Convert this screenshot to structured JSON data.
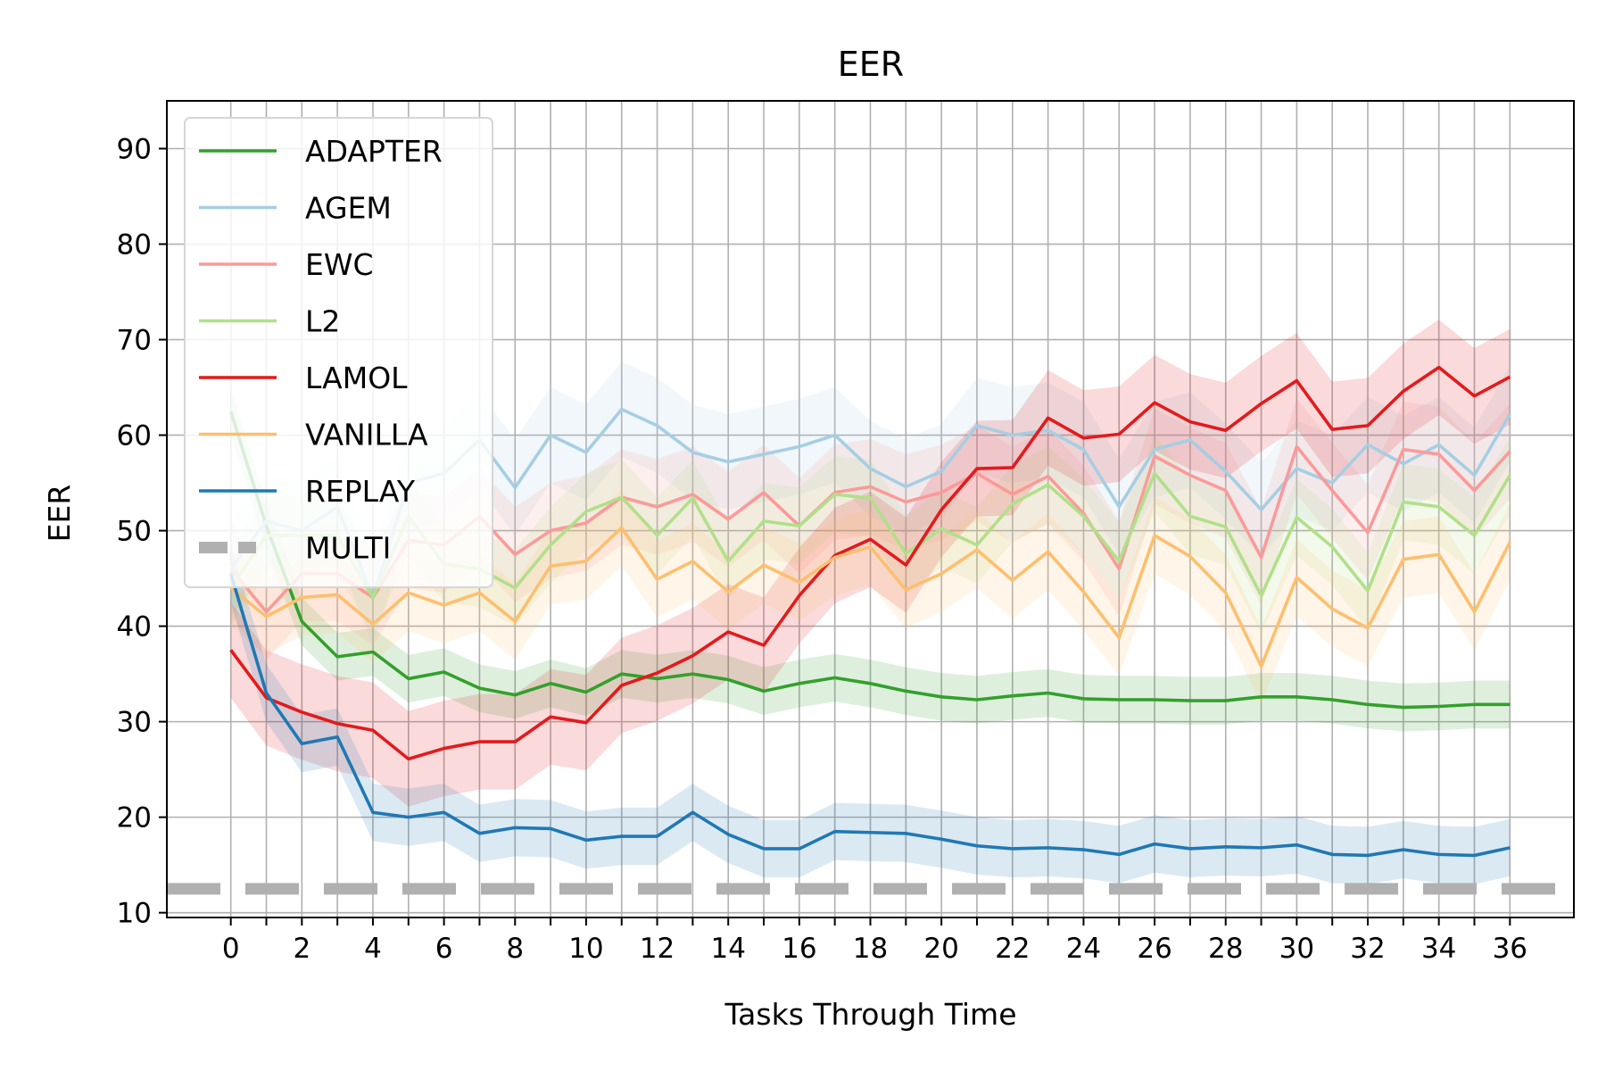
{
  "chart_data": {
    "type": "line",
    "title": "EER",
    "xlabel": "Tasks Through Time",
    "ylabel": "EER",
    "xlim": [
      -1.8,
      37.8
    ],
    "ylim": [
      9.5,
      95
    ],
    "xticks_labeled": [
      0,
      2,
      4,
      6,
      8,
      10,
      12,
      14,
      16,
      18,
      20,
      22,
      24,
      26,
      28,
      30,
      32,
      34,
      36
    ],
    "yticks": [
      10,
      20,
      30,
      40,
      50,
      60,
      70,
      80,
      90
    ],
    "grid": true,
    "legend_position": "upper-left",
    "x": [
      0,
      1,
      2,
      3,
      4,
      5,
      6,
      7,
      8,
      9,
      10,
      11,
      12,
      13,
      14,
      15,
      16,
      17,
      18,
      19,
      20,
      21,
      22,
      23,
      24,
      25,
      26,
      27,
      28,
      29,
      30,
      31,
      32,
      33,
      34,
      35,
      36
    ],
    "series": [
      {
        "name": "ADAPTER",
        "color": "#33a02c",
        "band": 2.5,
        "values": [
          62.5,
          50.5,
          40.5,
          36.8,
          37.3,
          34.5,
          35.2,
          33.5,
          32.8,
          34.0,
          33.1,
          35.0,
          34.5,
          35.0,
          34.4,
          33.2,
          34.0,
          34.6,
          34.0,
          33.2,
          32.6,
          32.3,
          32.7,
          33.0,
          32.4,
          32.3,
          32.3,
          32.2,
          32.2,
          32.6,
          32.6,
          32.3,
          31.8,
          31.5,
          31.6,
          31.8,
          31.8
        ]
      },
      {
        "name": "AGEM",
        "color": "#a6cee3",
        "band": 5,
        "values": [
          46.0,
          51.0,
          50.0,
          52.5,
          43.0,
          55.0,
          56.0,
          59.5,
          54.5,
          60.0,
          58.2,
          62.7,
          61.0,
          58.2,
          57.2,
          58.0,
          58.8,
          60.0,
          56.5,
          54.6,
          56.2,
          61.0,
          60.0,
          60.5,
          58.5,
          52.5,
          58.5,
          59.5,
          56.2,
          52.2,
          56.5,
          55.0,
          59.0,
          57.0,
          59.0,
          55.8,
          62.2
        ]
      },
      {
        "name": "EWC",
        "color": "#fb9a99",
        "band": 5,
        "values": [
          46.0,
          41.5,
          45.5,
          45.5,
          43.0,
          49.0,
          48.5,
          51.5,
          47.5,
          50.0,
          50.8,
          53.5,
          52.5,
          53.8,
          51.2,
          54.0,
          50.5,
          54.0,
          54.6,
          53.0,
          54.0,
          56.0,
          53.8,
          55.7,
          51.8,
          46.0,
          57.8,
          55.8,
          54.2,
          47.2,
          58.8,
          54.2,
          49.8,
          58.5,
          58.0,
          54.2,
          58.3
        ]
      },
      {
        "name": "L2",
        "color": "#b2df8a",
        "band": 4,
        "values": [
          44.0,
          49.5,
          49.5,
          49.5,
          43.0,
          51.5,
          46.5,
          46.0,
          44.0,
          48.5,
          52.0,
          53.5,
          49.5,
          53.4,
          46.8,
          51.0,
          50.5,
          53.8,
          53.4,
          47.6,
          50.2,
          48.5,
          52.8,
          54.8,
          51.5,
          46.8,
          56.0,
          51.5,
          50.4,
          43.2,
          51.4,
          48.3,
          43.7,
          53.0,
          52.5,
          49.5,
          55.8
        ]
      },
      {
        "name": "LAMOL",
        "color": "#e31a1c",
        "band": 5,
        "values": [
          37.5,
          32.5,
          31.0,
          29.8,
          29.1,
          26.1,
          27.2,
          27.9,
          27.9,
          30.5,
          29.9,
          33.8,
          35.1,
          36.9,
          39.4,
          38.0,
          43.2,
          47.4,
          49.1,
          46.4,
          52.2,
          56.5,
          56.6,
          61.8,
          59.7,
          60.1,
          63.4,
          61.4,
          60.5,
          63.3,
          65.7,
          60.6,
          61.0,
          64.6,
          67.1,
          64.1,
          66.1
        ]
      },
      {
        "name": "VANILLA",
        "color": "#fdbf6f",
        "band": 4,
        "values": [
          44.0,
          41.0,
          43.0,
          43.3,
          40.2,
          43.5,
          42.2,
          43.5,
          40.5,
          46.3,
          46.8,
          50.3,
          44.9,
          46.8,
          43.6,
          46.4,
          44.6,
          47.2,
          48.3,
          43.8,
          45.5,
          48.0,
          44.8,
          47.8,
          43.6,
          38.8,
          49.5,
          47.3,
          43.5,
          35.8,
          45.1,
          41.8,
          39.8,
          47.0,
          47.5,
          41.5,
          48.8
        ]
      },
      {
        "name": "REPLAY",
        "color": "#1f78b4",
        "band": 3,
        "values": [
          45.5,
          33.0,
          27.7,
          28.4,
          20.5,
          20.0,
          20.5,
          18.3,
          18.9,
          18.8,
          17.6,
          18.0,
          18.0,
          20.5,
          18.2,
          16.7,
          16.7,
          18.5,
          18.4,
          18.3,
          17.7,
          17.0,
          16.7,
          16.8,
          16.6,
          16.1,
          17.2,
          16.7,
          16.9,
          16.8,
          17.1,
          16.1,
          16.0,
          16.6,
          16.1,
          16.0,
          16.8
        ]
      },
      {
        "name": "MULTI",
        "color": "#b0b0b0",
        "dashed": true,
        "constant": 12.5
      }
    ]
  }
}
